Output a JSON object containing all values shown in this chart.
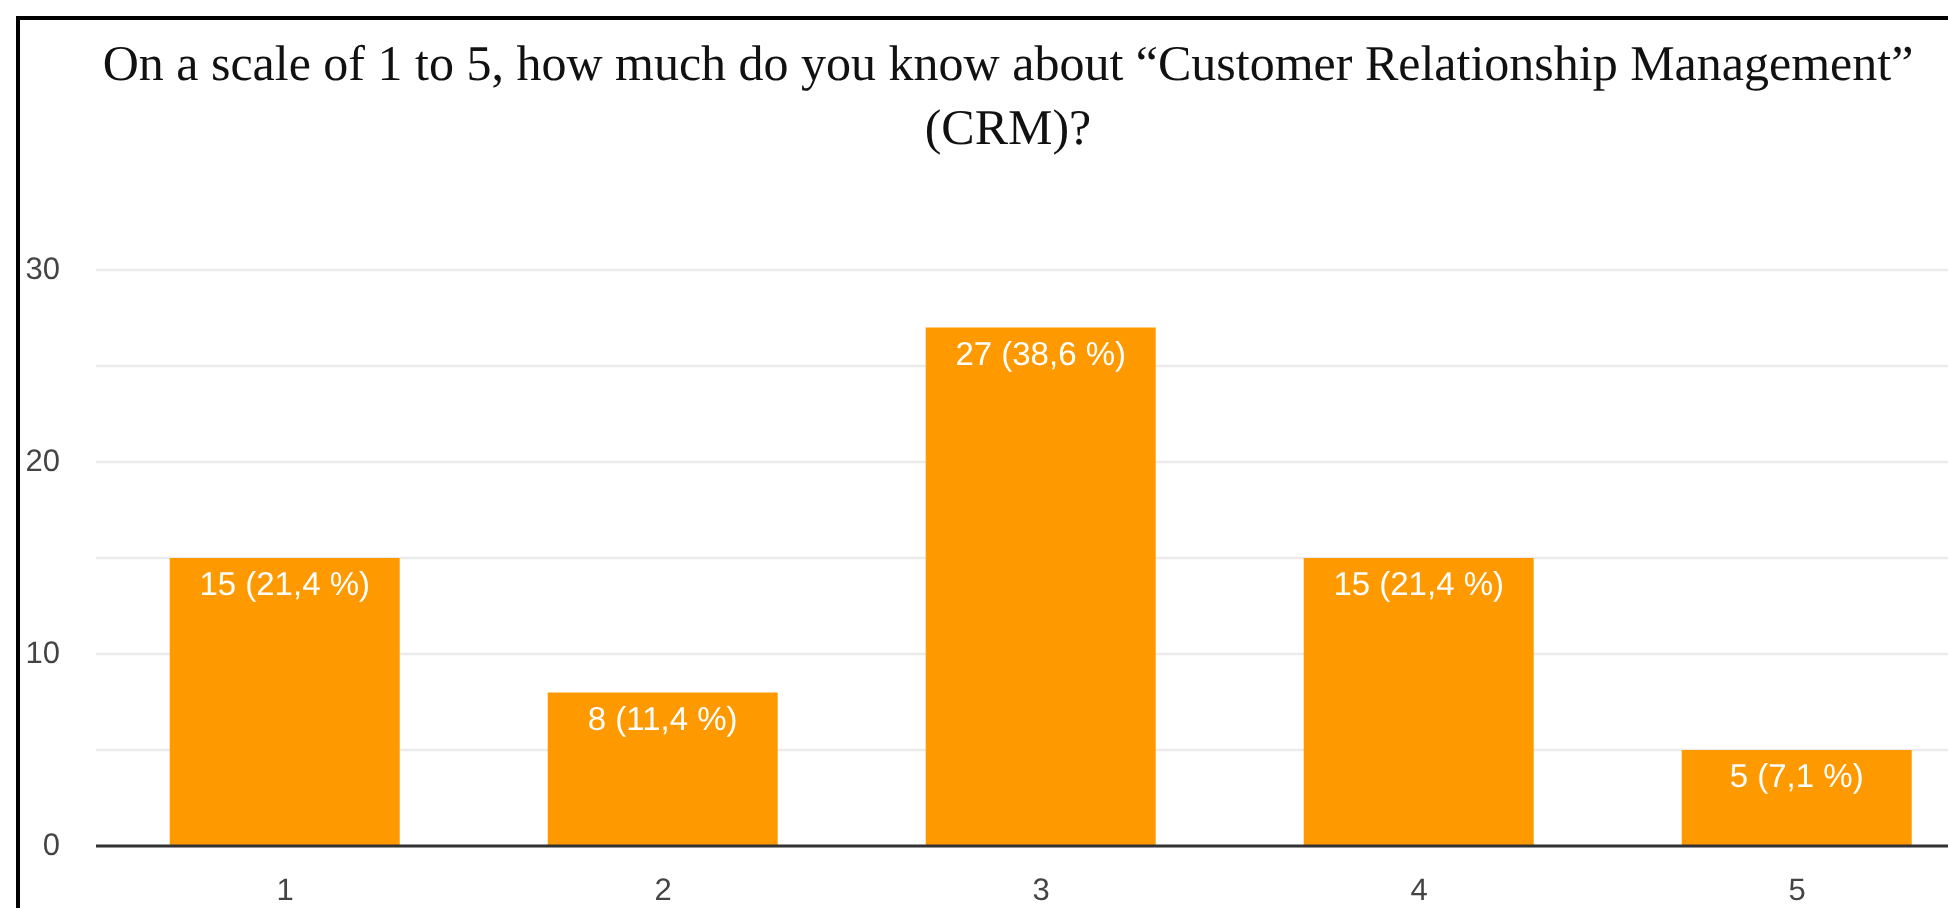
{
  "chart_data": {
    "type": "bar",
    "title": "On a scale of 1 to 5, how much do you know about “Customer Relationship Management” (CRM)?",
    "categories": [
      "1",
      "2",
      "3",
      "4",
      "5"
    ],
    "values": [
      15,
      8,
      27,
      15,
      5
    ],
    "value_labels": [
      "15 (21,4 %)",
      "8 (11,4 %)",
      "27 (38,6 %)",
      "15 (21,4 %)",
      "5 (7,1 %)"
    ],
    "color": "#ff9900",
    "ylim": [
      0,
      30
    ],
    "yticks": [
      0,
      {
        "value": 5,
        "label": null
      },
      10,
      {
        "value": 15,
        "label": null
      },
      20,
      {
        "value": 25,
        "label": null
      },
      30
    ],
    "grid": "y"
  }
}
